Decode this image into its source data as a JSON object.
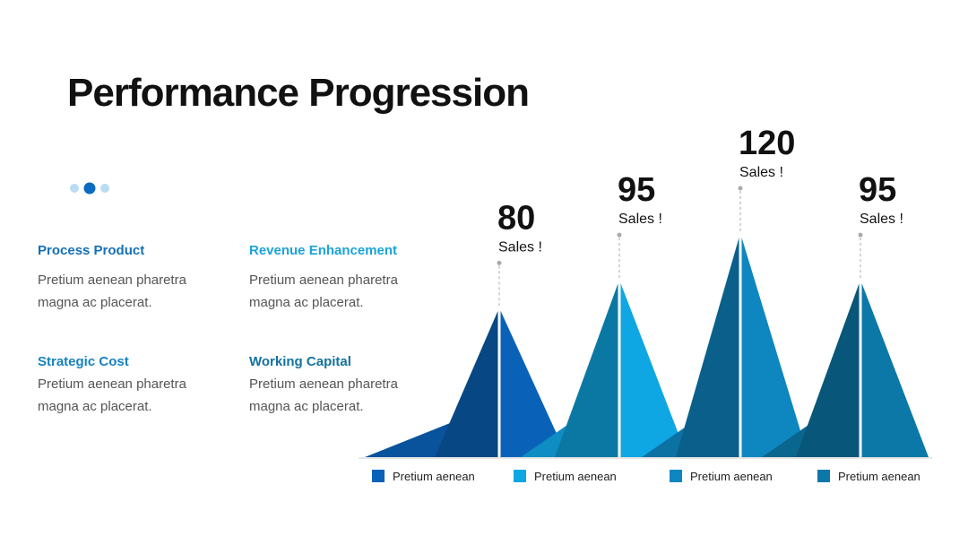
{
  "slide": {
    "title": "Performance Progression",
    "items": [
      {
        "heading": "Process Product",
        "text": [
          "Pretium aenean pharetra",
          "magna ac placerat."
        ]
      },
      {
        "heading": "Revenue Enhancement",
        "text": [
          "Pretium aenean pharetra",
          "magna ac placerat."
        ]
      },
      {
        "heading": "Strategic Cost",
        "text": [
          "Pretium aenean pharetra",
          "magna ac placerat."
        ]
      },
      {
        "heading": "Working Capital",
        "text": [
          "Pretium aenean pharetra",
          "magna ac placerat."
        ]
      }
    ]
  },
  "chart_data": {
    "type": "pyramid",
    "categories": [
      "Pretium aenean",
      "Pretium aenean",
      "Pretium aenean",
      "Pretium aenean"
    ],
    "values": [
      80,
      95,
      120,
      95
    ],
    "annotations": [
      "Sales !",
      "Sales !",
      "Sales !",
      "Sales !"
    ],
    "colors": [
      "#0a62b8",
      "#0fa6e4",
      "#0e86c0",
      "#0b78a8"
    ]
  }
}
